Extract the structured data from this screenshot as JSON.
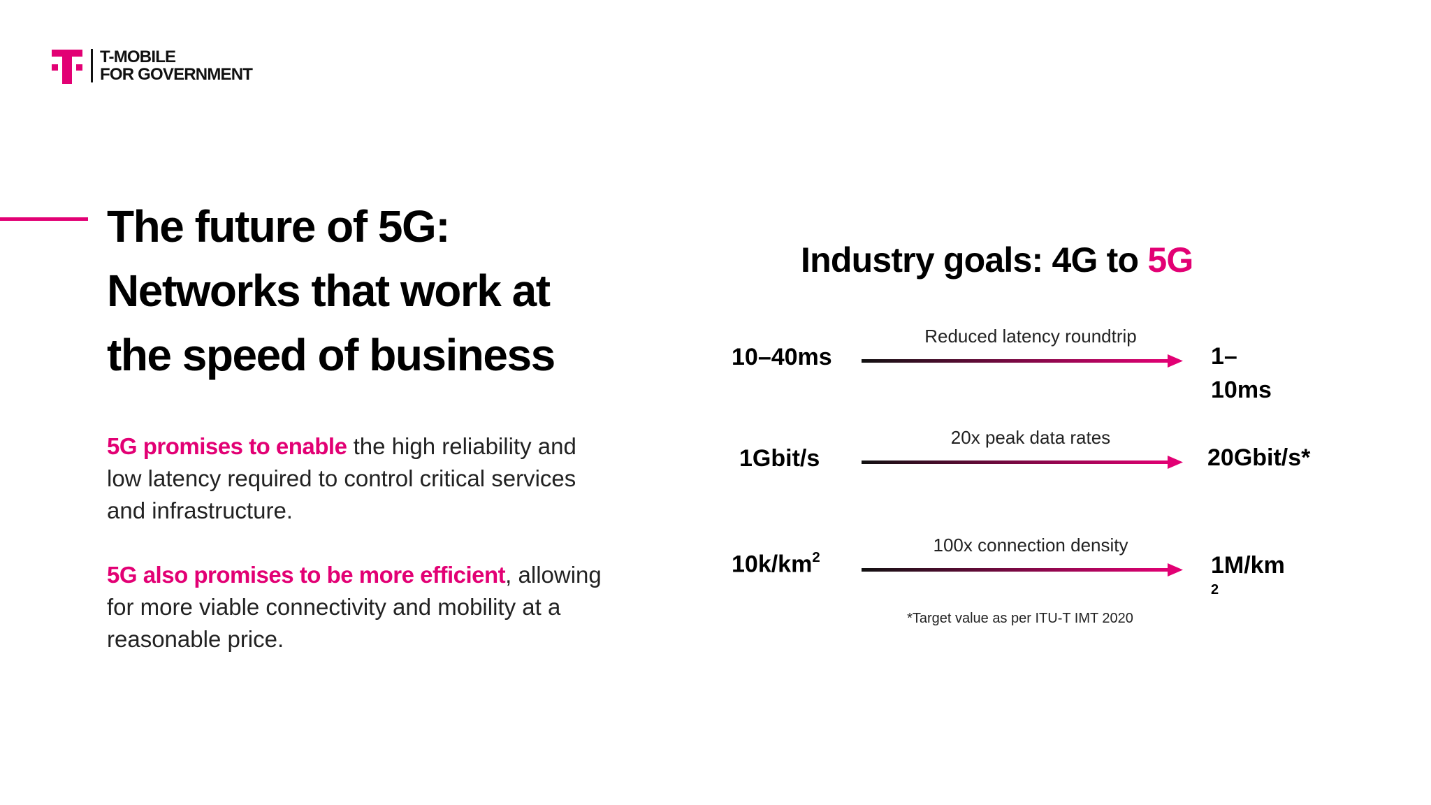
{
  "logo": {
    "line1": "T-MOBILE",
    "line2": "FOR GOVERNMENT",
    "mark": "t-mobile-logo-icon"
  },
  "headline": {
    "line1": "The future of 5G:",
    "line2": "Networks that work at",
    "line3": "the speed of business"
  },
  "para1": {
    "highlight": "5G promises to enable",
    "rest": " the high reliability and low latency required to control critical services and infrastructure."
  },
  "para2": {
    "highlight": "5G also promises to be more efficient",
    "rest": ", allowing for more viable connectivity and mobility at a reasonable price."
  },
  "goals": {
    "title_prefix": "Industry goals: 4G to ",
    "title_accent": "5G",
    "footnote": "*Target value as per ITU-T IMT 2020"
  },
  "metrics": [
    {
      "from": "10–40ms",
      "label": "Reduced latency roundtrip",
      "to_line1": "1–",
      "to_line2": "10ms"
    },
    {
      "from": "1Gbit/s",
      "label": "20x peak data rates",
      "to_line1": "20Gbit/s*"
    },
    {
      "from_base": "10k/km",
      "from_sup": "2",
      "label": "100x connection density",
      "to_line1": "1M/km",
      "to_line2": "2"
    }
  ],
  "colors": {
    "brand_magenta": "#e20074",
    "text": "#111111",
    "background": "#ffffff"
  }
}
